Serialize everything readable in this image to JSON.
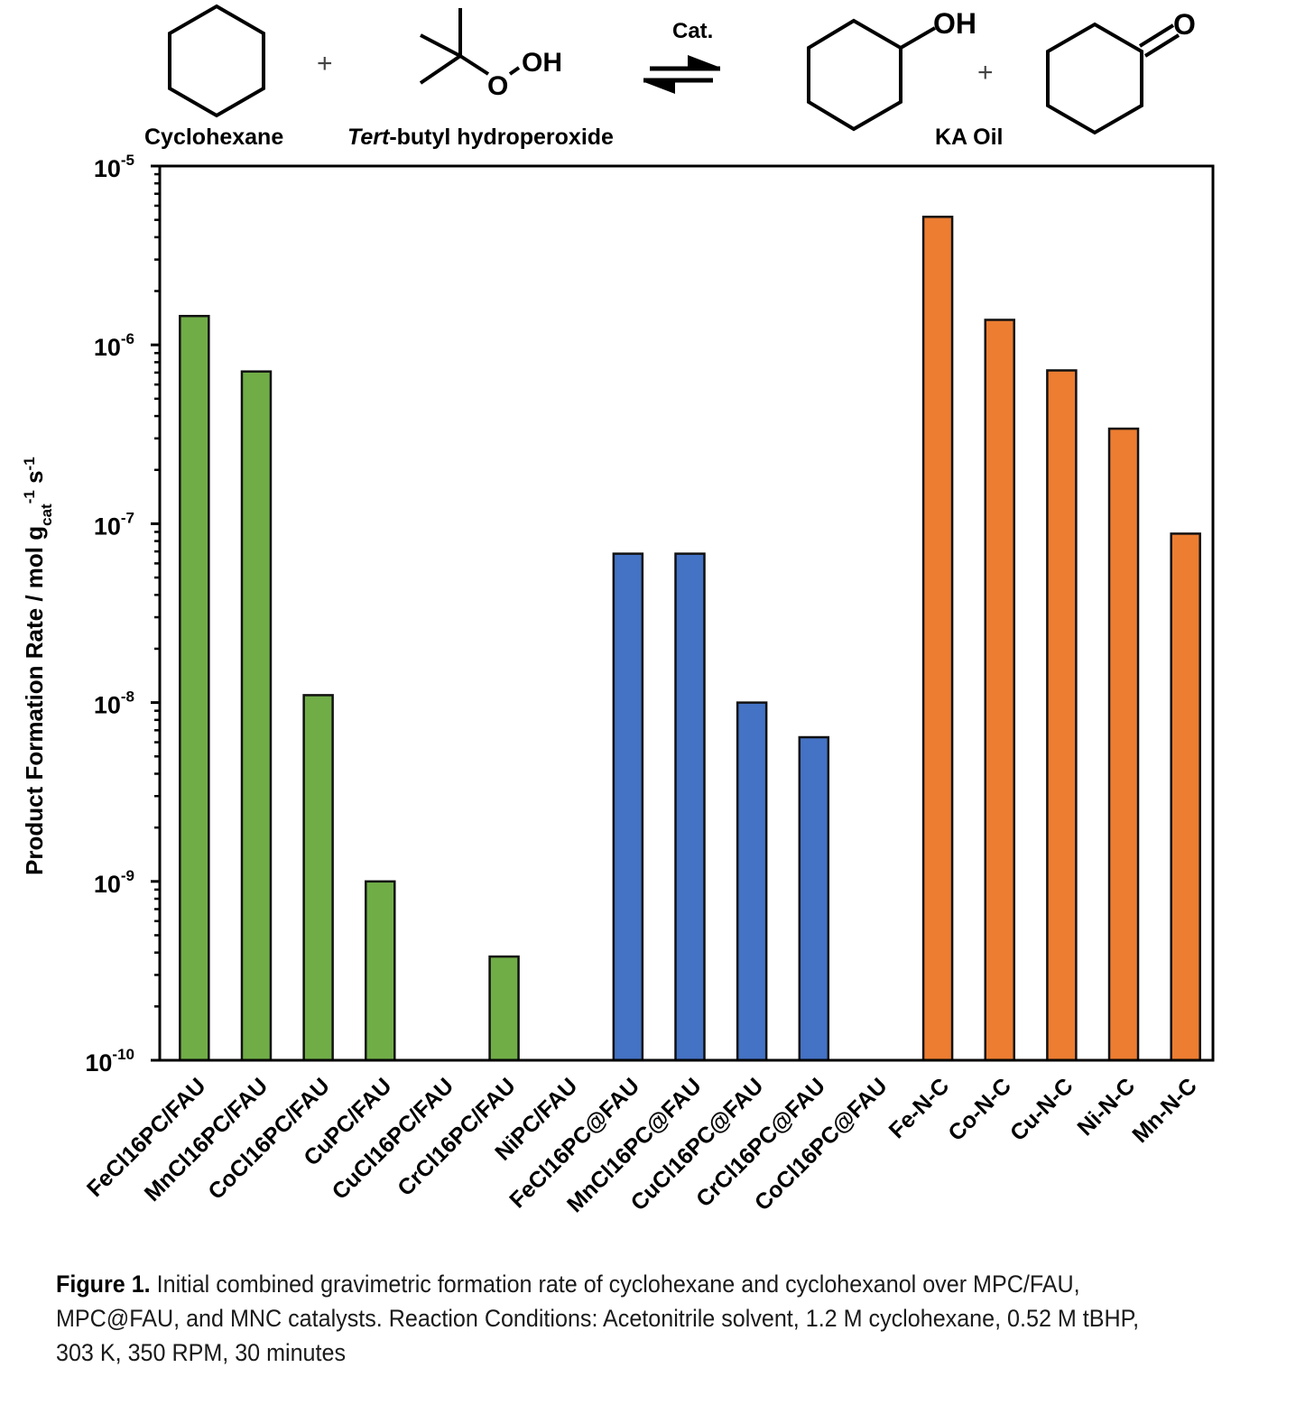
{
  "scheme": {
    "reactant1": "Cyclohexane",
    "reactant2_italic": "Tert",
    "reactant2_rest": "-butyl hydroperoxide",
    "plus": "+",
    "catalyst": "Cat.",
    "product": "KA Oil",
    "oh_label": "OH",
    "o_label": "O",
    "peroxide_o": "O",
    "peroxide_oh": "OH"
  },
  "caption": {
    "figure_label": "Figure 1.",
    "text": " Initial combined gravimetric formation rate of cyclohexane and cyclohexanol over MPC/FAU, MPC@FAU, and MNC catalysts. Reaction Conditions: Acetonitrile solvent, 1.2 M cyclohexane,  0.52 M tBHP, 303 K, 350 RPM, 30 minutes"
  },
  "chart_data": {
    "type": "bar",
    "yscale": "log",
    "ylim": [
      1e-10,
      1e-05
    ],
    "ylabel": "Product Formation Rate / mol g_cat^-1 s^-1",
    "ylabel_parts": {
      "main": "Product Formation Rate / mol g",
      "sub": "cat",
      "sup1": "-1",
      "mid": " s",
      "sup2": "-1"
    },
    "xlabel": "",
    "title": "",
    "grid": false,
    "legend": "none",
    "yticks": [
      {
        "base": "10",
        "exp": "-5",
        "value": 1e-05
      },
      {
        "base": "10",
        "exp": "-6",
        "value": 1e-06
      },
      {
        "base": "10",
        "exp": "-7",
        "value": 1e-07
      },
      {
        "base": "10",
        "exp": "-8",
        "value": 1e-08
      },
      {
        "base": "10",
        "exp": "-9",
        "value": 1e-09
      },
      {
        "base": "10",
        "exp": "-10",
        "value": 1e-10
      }
    ],
    "categories": [
      "FeCl16PC/FAU",
      "MnCl16PC/FAU",
      "CoCl16PC/FAU",
      "CuPC/FAU",
      "CuCl16PC/FAU",
      "CrCl16PC/FAU",
      "NiPC/FAU",
      "FeCl16PC@FAU",
      "MnCl16PC@FAU",
      "CuCl16PC@FAU",
      "CrCl16PC@FAU",
      "CoCl16PC@FAU",
      "Fe-N-C",
      "Co-N-C",
      "Cu-N-C",
      "Ni-N-C",
      "Mn-N-C"
    ],
    "values": [
      1.45e-06,
      7.1e-07,
      1.1e-08,
      1e-09,
      null,
      3.8e-10,
      null,
      6.8e-08,
      6.8e-08,
      1e-08,
      6.4e-09,
      null,
      5.2e-06,
      1.38e-06,
      7.2e-07,
      3.4e-07,
      8.8e-08
    ],
    "groups": [
      {
        "name": "MPC/FAU",
        "color": "#70AD47",
        "indices": [
          0,
          1,
          2,
          3,
          4,
          5,
          6
        ]
      },
      {
        "name": "MPC@FAU",
        "color": "#4472C4",
        "indices": [
          7,
          8,
          9,
          10,
          11
        ]
      },
      {
        "name": "MNC",
        "color": "#ED7D31",
        "indices": [
          12,
          13,
          14,
          15,
          16
        ]
      }
    ]
  }
}
